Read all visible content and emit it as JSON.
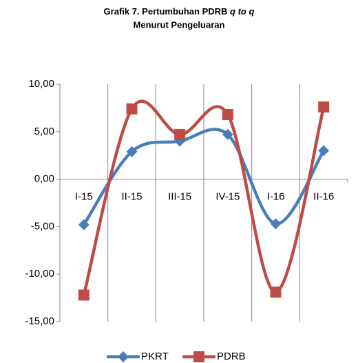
{
  "chart_data": {
    "type": "line",
    "title": {
      "text": "Grafik 7. Pertumbuhan PDRB",
      "italic": "q to q"
    },
    "subtitle": "Menurut Pengeluaran",
    "categories": [
      "I-15",
      "II-15",
      "III-15",
      "IV-15",
      "I-16",
      "II-16"
    ],
    "series": [
      {
        "name": "PKRT",
        "color": "#4a7ebb",
        "marker": "diamond",
        "values": [
          -4.8,
          2.9,
          4.0,
          4.7,
          -4.7,
          3.0
        ]
      },
      {
        "name": "PDRB",
        "color": "#be4b48",
        "marker": "square",
        "values": [
          -12.2,
          7.4,
          4.7,
          6.8,
          -11.9,
          7.6
        ]
      }
    ],
    "ylim": [
      -15,
      10
    ],
    "yticks": [
      {
        "value": -15,
        "label": "-15,00"
      },
      {
        "value": -10,
        "label": "-10,00"
      },
      {
        "value": -5,
        "label": "-5,00"
      },
      {
        "value": 0,
        "label": "0,00"
      },
      {
        "value": 5,
        "label": "5,00"
      },
      {
        "value": 10,
        "label": "10,00"
      }
    ],
    "smooth": true,
    "legend": "bottom"
  }
}
